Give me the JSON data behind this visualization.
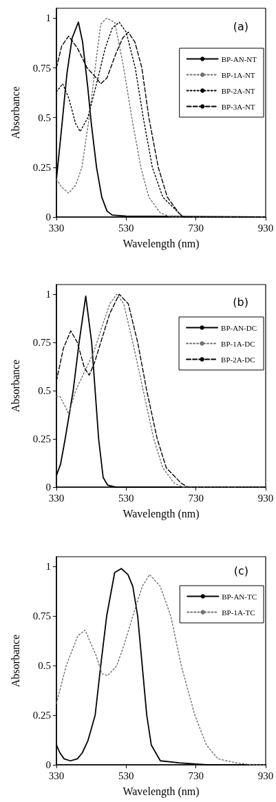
{
  "chart_data": [
    {
      "type": "line",
      "xlabel": "Wavelength (nm)",
      "ylabel": "Absorbance",
      "annotations": [
        "(a)"
      ],
      "xlim": [
        330,
        930
      ],
      "ylim": [
        0,
        1.05
      ],
      "xticks": [
        330,
        530,
        730,
        930
      ],
      "yticks": [
        0,
        0.25,
        0.5,
        0.75,
        1
      ],
      "grid": false,
      "legend": "right",
      "marker": "none",
      "series": [
        {
          "name": "BP-AN-NT",
          "color": "#000000",
          "line_style": "solid",
          "x": [
            330,
            345,
            360,
            375,
            393,
            405,
            420,
            430,
            445,
            460,
            475,
            490,
            530,
            930
          ],
          "values": [
            0.19,
            0.45,
            0.72,
            0.9,
            0.98,
            0.88,
            0.65,
            0.47,
            0.25,
            0.1,
            0.03,
            0.01,
            0.005,
            0
          ]
        },
        {
          "name": "BP-1A-NT",
          "color": "#707070",
          "line_style": "dotted",
          "x": [
            330,
            345,
            365,
            385,
            403,
            424,
            441,
            457,
            474,
            497,
            523,
            546,
            572,
            595,
            628,
            661,
            930
          ],
          "values": [
            0.19,
            0.15,
            0.12,
            0.16,
            0.25,
            0.5,
            0.75,
            0.97,
            1.0,
            0.98,
            0.75,
            0.5,
            0.25,
            0.1,
            0.02,
            0,
            0
          ]
        },
        {
          "name": "BP-2A-NT",
          "color": "#000000",
          "line_style": "dotted",
          "x": [
            330,
            348,
            365,
            385,
            398,
            420,
            445,
            470,
            490,
            510,
            530,
            556,
            579,
            605,
            635,
            681,
            694,
            930
          ],
          "values": [
            0.63,
            0.67,
            0.6,
            0.47,
            0.43,
            0.5,
            0.67,
            0.85,
            0.95,
            0.98,
            0.93,
            0.75,
            0.5,
            0.25,
            0.1,
            0.02,
            0,
            0
          ]
        },
        {
          "name": "BP-3A-NT",
          "color": "#000000",
          "line_style": "dashed",
          "x": [
            330,
            345,
            365,
            390,
            418,
            444,
            457,
            475,
            500,
            520,
            536,
            555,
            575,
            595,
            622,
            648,
            681,
            694,
            930
          ],
          "values": [
            0.75,
            0.86,
            0.91,
            0.85,
            0.75,
            0.7,
            0.67,
            0.7,
            0.82,
            0.9,
            0.93,
            0.88,
            0.75,
            0.5,
            0.25,
            0.1,
            0.02,
            0,
            0
          ]
        }
      ]
    },
    {
      "type": "line",
      "xlabel": "Wavelength (nm)",
      "ylabel": "Absorbance",
      "annotations": [
        "(b)"
      ],
      "xlim": [
        330,
        930
      ],
      "ylim": [
        0,
        1.05
      ],
      "xticks": [
        330,
        530,
        730,
        930
      ],
      "yticks": [
        0,
        0.25,
        0.5,
        0.75,
        1
      ],
      "grid": false,
      "legend": "right",
      "marker": "none",
      "series": [
        {
          "name": "BP-AN-DC",
          "color": "#000000",
          "line_style": "solid",
          "x": [
            330,
            342,
            355,
            378,
            395,
            414,
            431,
            441,
            451,
            464,
            477,
            500,
            930
          ],
          "values": [
            0.06,
            0.12,
            0.25,
            0.5,
            0.75,
            0.99,
            0.75,
            0.5,
            0.25,
            0.05,
            0.01,
            0,
            0
          ]
        },
        {
          "name": "BP-1A-DC",
          "color": "#707070",
          "line_style": "dotted",
          "x": [
            330,
            340,
            352,
            365,
            385,
            411,
            437,
            464,
            483,
            503,
            523,
            549,
            579,
            609,
            635,
            668,
            694,
            930
          ],
          "values": [
            0.47,
            0.47,
            0.43,
            0.38,
            0.5,
            0.6,
            0.7,
            0.85,
            0.95,
            1.0,
            0.95,
            0.75,
            0.5,
            0.25,
            0.1,
            0.02,
            0,
            0
          ]
        },
        {
          "name": "BP-2A-DC",
          "color": "#000000",
          "line_style": "dashed",
          "x": [
            330,
            350,
            371,
            390,
            410,
            424,
            440,
            457,
            483,
            510,
            536,
            563,
            589,
            619,
            645,
            688,
            707,
            930
          ],
          "values": [
            0.55,
            0.72,
            0.81,
            0.75,
            0.62,
            0.58,
            0.65,
            0.75,
            0.9,
            1.0,
            0.95,
            0.75,
            0.5,
            0.25,
            0.1,
            0.02,
            0,
            0
          ]
        }
      ]
    },
    {
      "type": "line",
      "xlabel": "Wavelength (nm)",
      "ylabel": "Absorbance",
      "annotations": [
        "(c)"
      ],
      "xlim": [
        330,
        930
      ],
      "ylim": [
        0,
        1.05
      ],
      "xticks": [
        330,
        530,
        730,
        930
      ],
      "yticks": [
        0,
        0.25,
        0.5,
        0.75,
        1
      ],
      "grid": false,
      "legend": "right",
      "marker": "none",
      "series": [
        {
          "name": "BP-AN-TC",
          "color": "#000000",
          "line_style": "solid",
          "x": [
            330,
            340,
            352,
            370,
            390,
            404,
            420,
            441,
            457,
            474,
            497,
            516,
            535,
            549,
            563,
            576,
            589,
            602,
            628,
            681,
            760,
            930
          ],
          "values": [
            0.1,
            0.06,
            0.03,
            0.02,
            0.03,
            0.06,
            0.12,
            0.25,
            0.5,
            0.75,
            0.97,
            0.99,
            0.96,
            0.9,
            0.75,
            0.5,
            0.25,
            0.1,
            0.02,
            0.01,
            0,
            0
          ]
        },
        {
          "name": "BP-1A-TC",
          "color": "#707070",
          "line_style": "dotted",
          "x": [
            330,
            358,
            391,
            412,
            444,
            460,
            477,
            503,
            523,
            549,
            576,
            597,
            628,
            658,
            688,
            727,
            760,
            793,
            845,
            892,
            930
          ],
          "values": [
            0.31,
            0.5,
            0.65,
            0.68,
            0.55,
            0.46,
            0.45,
            0.5,
            0.6,
            0.75,
            0.9,
            0.96,
            0.9,
            0.75,
            0.5,
            0.25,
            0.1,
            0.03,
            0.01,
            0,
            0
          ]
        }
      ]
    }
  ]
}
